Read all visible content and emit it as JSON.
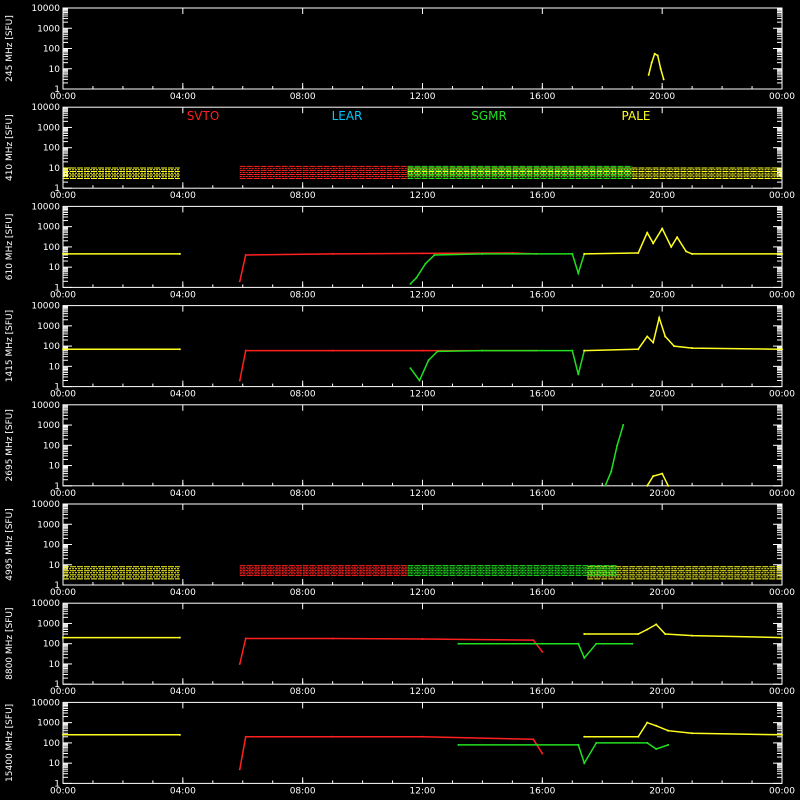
{
  "chart_data": {
    "type": "line",
    "x_tick_labels": [
      "00:00",
      "04:00",
      "08:00",
      "12:00",
      "16:00",
      "20:00",
      "00:00"
    ],
    "x_range_hours": [
      0,
      24
    ],
    "y_tick_labels": [
      "1",
      "10",
      "100",
      "1000",
      "10000"
    ],
    "y_scale": "log",
    "y_range": [
      1,
      10000
    ],
    "legend": [
      {
        "name": "SVTO",
        "color": "#ff2020"
      },
      {
        "name": "LEAR",
        "color": "#00c8ff"
      },
      {
        "name": "SGMR",
        "color": "#20e020"
      },
      {
        "name": "PALE",
        "color": "#ffff20"
      }
    ],
    "legend_panel": 1,
    "panels": [
      {
        "ylabel": "245 MHz [SFU]",
        "series": [
          {
            "name": "PALE",
            "color": "#ffff20",
            "points": [
              [
                19.55,
                5
              ],
              [
                19.65,
                20
              ],
              [
                19.75,
                55
              ],
              [
                19.85,
                45
              ],
              [
                19.95,
                10
              ],
              [
                20.05,
                3
              ]
            ]
          }
        ]
      },
      {
        "ylabel": "410 MHz [SFU]",
        "series": [
          {
            "name": "PALE",
            "color": "#ffff20",
            "band": [
              3,
              10
            ],
            "segments": [
              [
                0,
                3.9
              ],
              [
                11.5,
                24
              ]
            ]
          },
          {
            "name": "SVTO",
            "color": "#ff2020",
            "band": [
              3,
              12
            ],
            "segments": [
              [
                5.9,
                11.5
              ]
            ]
          },
          {
            "name": "SGMR",
            "color": "#20e020",
            "band": [
              3,
              12
            ],
            "segments": [
              [
                11.5,
                19
              ]
            ]
          }
        ]
      },
      {
        "ylabel": "610 MHz [SFU]",
        "series": [
          {
            "name": "PALE",
            "color": "#ffff20",
            "points": [
              [
                0,
                45
              ],
              [
                3.9,
                45
              ]
            ]
          },
          {
            "name": "SVTO",
            "color": "#ff2020",
            "points": [
              [
                5.9,
                2
              ],
              [
                6.1,
                40
              ],
              [
                9,
                45
              ],
              [
                12,
                48
              ],
              [
                15,
                50
              ],
              [
                15.8,
                45
              ]
            ]
          },
          {
            "name": "SGMR",
            "color": "#20e020",
            "points": [
              [
                11.6,
                1.5
              ],
              [
                11.8,
                3
              ],
              [
                12.1,
                15
              ],
              [
                12.4,
                40
              ],
              [
                14,
                45
              ],
              [
                17,
                45
              ],
              [
                17.2,
                5
              ],
              [
                17.4,
                45
              ]
            ]
          },
          {
            "name": "PALE",
            "color": "#ffff20",
            "points": [
              [
                17.4,
                45
              ],
              [
                19.2,
                50
              ],
              [
                19.5,
                500
              ],
              [
                19.7,
                150
              ],
              [
                20,
                800
              ],
              [
                20.3,
                100
              ],
              [
                20.5,
                300
              ],
              [
                20.8,
                60
              ],
              [
                21,
                45
              ],
              [
                24,
                45
              ]
            ]
          }
        ]
      },
      {
        "ylabel": "1415 MHz [SFU]",
        "series": [
          {
            "name": "PALE",
            "color": "#ffff20",
            "points": [
              [
                0,
                70
              ],
              [
                3.9,
                70
              ]
            ]
          },
          {
            "name": "SVTO",
            "color": "#ff2020",
            "points": [
              [
                5.9,
                2
              ],
              [
                6.1,
                60
              ],
              [
                9,
                60
              ],
              [
                12,
                60
              ],
              [
                15.8,
                60
              ]
            ]
          },
          {
            "name": "SGMR",
            "color": "#20e020",
            "points": [
              [
                11.6,
                8
              ],
              [
                11.9,
                2
              ],
              [
                12.2,
                20
              ],
              [
                12.5,
                55
              ],
              [
                14,
                60
              ],
              [
                17,
                60
              ],
              [
                17.2,
                4
              ],
              [
                17.4,
                60
              ]
            ]
          },
          {
            "name": "PALE",
            "color": "#ffff20",
            "points": [
              [
                17.4,
                60
              ],
              [
                19.2,
                70
              ],
              [
                19.5,
                300
              ],
              [
                19.7,
                150
              ],
              [
                19.9,
                2500
              ],
              [
                20.1,
                300
              ],
              [
                20.4,
                100
              ],
              [
                21,
                80
              ],
              [
                24,
                70
              ]
            ]
          }
        ]
      },
      {
        "ylabel": "2695 MHz [SFU]",
        "series": [
          {
            "name": "SGMR",
            "color": "#20e020",
            "points": [
              [
                18.1,
                1
              ],
              [
                18.3,
                5
              ],
              [
                18.5,
                100
              ],
              [
                18.7,
                1000
              ]
            ]
          },
          {
            "name": "PALE",
            "color": "#ffff20",
            "points": [
              [
                19.5,
                1
              ],
              [
                19.7,
                3
              ],
              [
                20,
                4
              ],
              [
                20.2,
                1
              ]
            ]
          }
        ]
      },
      {
        "ylabel": "4995 MHz [SFU]",
        "series": [
          {
            "name": "PALE",
            "color": "#ffff20",
            "band": [
              2,
              8
            ],
            "segments": [
              [
                0,
                3.9
              ],
              [
                17.5,
                24
              ]
            ]
          },
          {
            "name": "SVTO",
            "color": "#ff2020",
            "band": [
              3,
              9
            ],
            "segments": [
              [
                5.9,
                11.5
              ]
            ]
          },
          {
            "name": "SGMR",
            "color": "#20e020",
            "band": [
              3,
              9
            ],
            "segments": [
              [
                11.5,
                18.5
              ]
            ]
          }
        ]
      },
      {
        "ylabel": "8800 MHz [SFU]",
        "series": [
          {
            "name": "PALE",
            "color": "#ffff20",
            "points": [
              [
                0,
                200
              ],
              [
                3.9,
                200
              ]
            ]
          },
          {
            "name": "SVTO",
            "color": "#ff2020",
            "points": [
              [
                5.9,
                10
              ],
              [
                6.1,
                180
              ],
              [
                9,
                180
              ],
              [
                12,
                170
              ],
              [
                15.7,
                150
              ],
              [
                16,
                40
              ]
            ]
          },
          {
            "name": "SGMR",
            "color": "#20e020",
            "points": [
              [
                13.2,
                100
              ],
              [
                16,
                100
              ],
              [
                17.2,
                100
              ],
              [
                17.4,
                20
              ],
              [
                17.8,
                100
              ],
              [
                19,
                100
              ]
            ]
          },
          {
            "name": "PALE",
            "color": "#ffff20",
            "points": [
              [
                17.4,
                300
              ],
              [
                19.2,
                300
              ],
              [
                19.5,
                500
              ],
              [
                19.8,
                900
              ],
              [
                20.1,
                300
              ],
              [
                21,
                250
              ],
              [
                24,
                200
              ]
            ]
          }
        ]
      },
      {
        "ylabel": "15400 MHz [SFU]",
        "series": [
          {
            "name": "PALE",
            "color": "#ffff20",
            "points": [
              [
                0,
                250
              ],
              [
                3.9,
                250
              ]
            ]
          },
          {
            "name": "SVTO",
            "color": "#ff2020",
            "points": [
              [
                5.9,
                5
              ],
              [
                6.1,
                200
              ],
              [
                9,
                200
              ],
              [
                12,
                200
              ],
              [
                15.7,
                150
              ],
              [
                16,
                30
              ]
            ]
          },
          {
            "name": "SGMR",
            "color": "#20e020",
            "points": [
              [
                13.2,
                80
              ],
              [
                17.2,
                80
              ],
              [
                17.4,
                10
              ],
              [
                17.8,
                100
              ],
              [
                19.5,
                100
              ],
              [
                19.8,
                50
              ],
              [
                20.2,
                80
              ]
            ]
          },
          {
            "name": "PALE",
            "color": "#ffff20",
            "points": [
              [
                17.4,
                200
              ],
              [
                19.2,
                200
              ],
              [
                19.5,
                1000
              ],
              [
                19.8,
                700
              ],
              [
                20.2,
                400
              ],
              [
                21,
                300
              ],
              [
                24,
                250
              ]
            ]
          }
        ]
      }
    ]
  }
}
